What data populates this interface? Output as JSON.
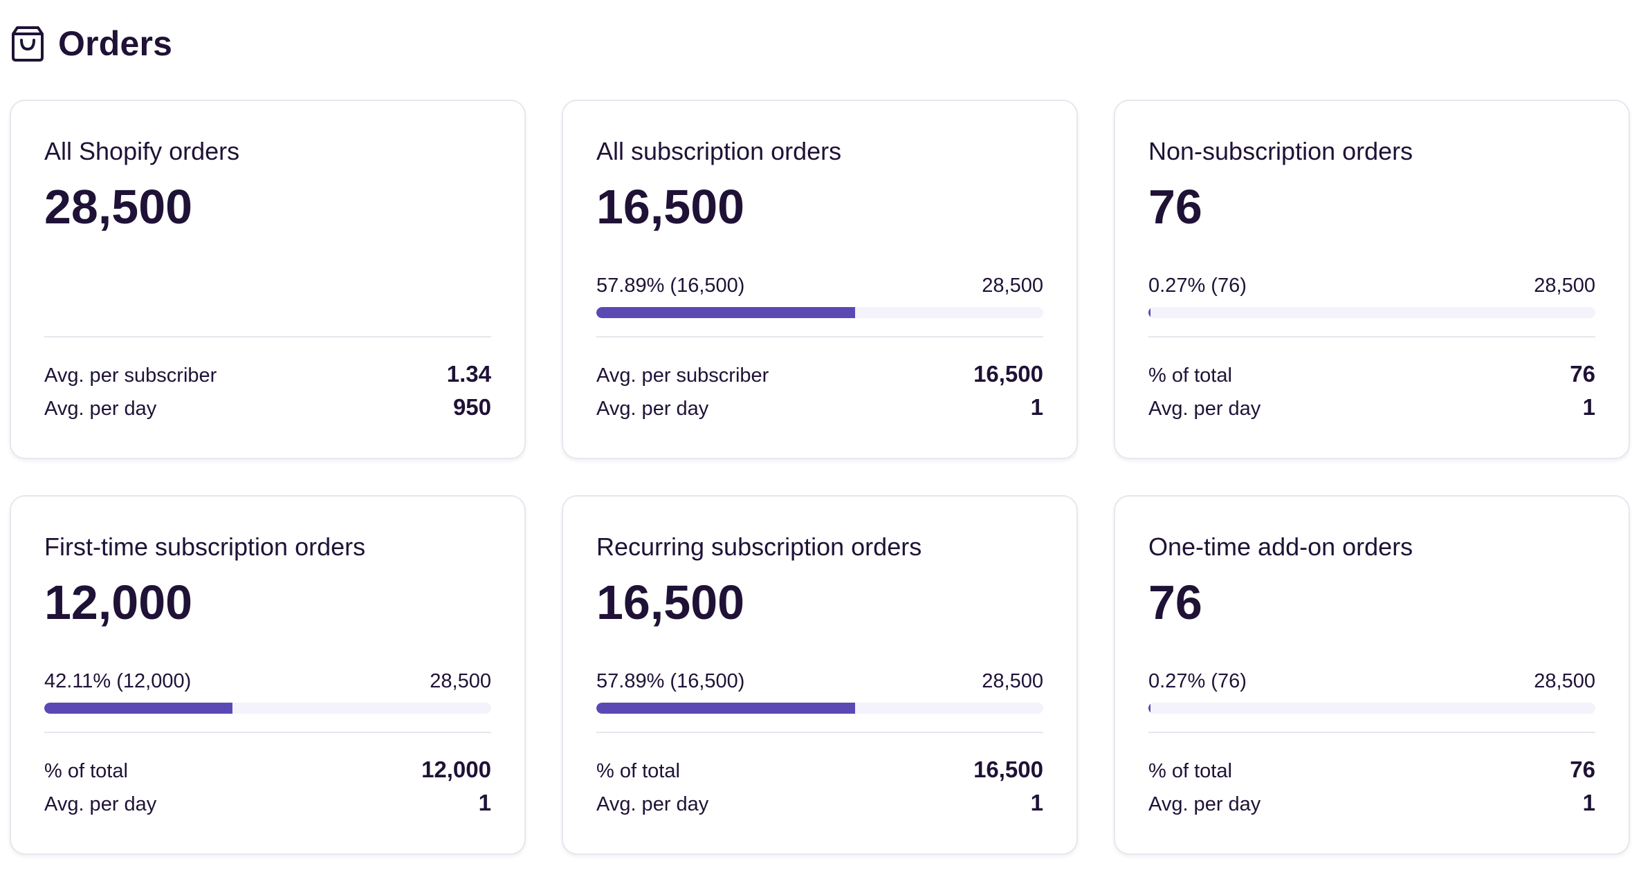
{
  "header": {
    "title": "Orders",
    "icon": "shopping-bag-icon"
  },
  "colors": {
    "accent": "#5b48b5",
    "track": "#f4f2fa",
    "text": "#1f1236",
    "border": "#e8e6ee"
  },
  "cards": [
    {
      "label": "All Shopify orders",
      "value": "28,500",
      "has_progress": false,
      "progress": null,
      "stats": [
        {
          "label": "Avg. per subscriber",
          "value": "1.34"
        },
        {
          "label": "Avg. per day",
          "value": "950"
        }
      ]
    },
    {
      "label": "All subscription orders",
      "value": "16,500",
      "has_progress": true,
      "progress": {
        "left_text": "57.89% (16,500)",
        "right_text": "28,500",
        "percent": 57.89
      },
      "stats": [
        {
          "label": "Avg. per subscriber",
          "value": "16,500"
        },
        {
          "label": "Avg. per day",
          "value": "1"
        }
      ]
    },
    {
      "label": "Non-subscription orders",
      "value": "76",
      "has_progress": true,
      "progress": {
        "left_text": "0.27% (76)",
        "right_text": "28,500",
        "percent": 0.27
      },
      "stats": [
        {
          "label": "% of total",
          "value": "76"
        },
        {
          "label": "Avg. per day",
          "value": "1"
        }
      ]
    },
    {
      "label": "First-time subscription orders",
      "value": "12,000",
      "has_progress": true,
      "progress": {
        "left_text": "42.11% (12,000)",
        "right_text": "28,500",
        "percent": 42.11
      },
      "stats": [
        {
          "label": "% of total",
          "value": "12,000"
        },
        {
          "label": "Avg. per day",
          "value": "1"
        }
      ]
    },
    {
      "label": "Recurring subscription orders",
      "value": "16,500",
      "has_progress": true,
      "progress": {
        "left_text": "57.89% (16,500)",
        "right_text": "28,500",
        "percent": 57.89
      },
      "stats": [
        {
          "label": "% of total",
          "value": "16,500"
        },
        {
          "label": "Avg. per day",
          "value": "1"
        }
      ]
    },
    {
      "label": "One-time add-on orders",
      "value": "76",
      "has_progress": true,
      "progress": {
        "left_text": "0.27% (76)",
        "right_text": "28,500",
        "percent": 0.27
      },
      "stats": [
        {
          "label": "% of total",
          "value": "76"
        },
        {
          "label": "Avg. per day",
          "value": "1"
        }
      ]
    }
  ]
}
